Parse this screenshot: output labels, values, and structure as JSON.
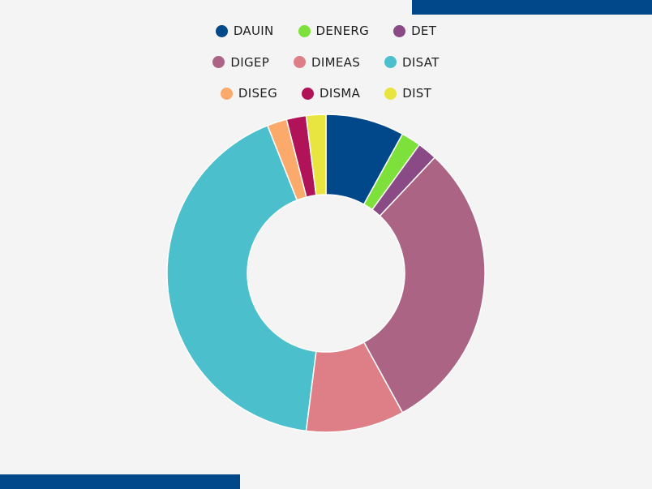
{
  "chart_data": {
    "type": "pie",
    "donut": true,
    "legend_position": "top",
    "categories": [
      "DAUIN",
      "DENERG",
      "DET",
      "DIGEP",
      "DIMEAS",
      "DISAT",
      "DISEG",
      "DISMA",
      "DIST"
    ],
    "values": [
      8,
      2,
      2,
      30,
      10,
      42,
      2,
      2,
      2
    ],
    "colors": [
      "#00488a",
      "#7ee03a",
      "#8a4a85",
      "#ac6485",
      "#de7f88",
      "#4bbfcb",
      "#fcaa6c",
      "#b01357",
      "#e8e540"
    ]
  }
}
